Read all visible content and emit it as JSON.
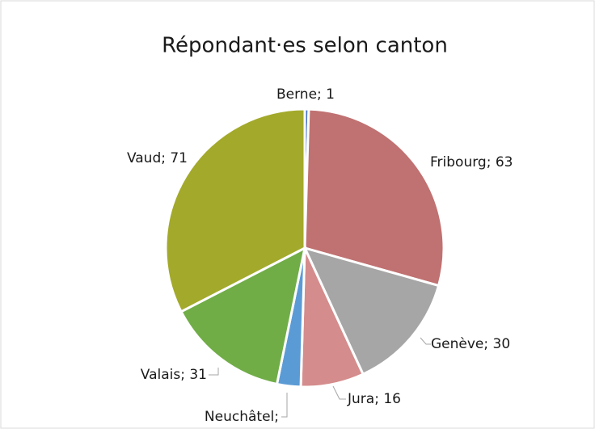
{
  "chart_data": {
    "type": "pie",
    "title": "Répondant·es selon canton",
    "categories": [
      "Berne",
      "Fribourg",
      "Genève",
      "Jura",
      "Neuchâtel",
      "Valais",
      "Vaud"
    ],
    "values": [
      1,
      63,
      30,
      16,
      6,
      31,
      71
    ],
    "value_labels": [
      "Berne; 1",
      "Fribourg; 63",
      "Genève; 30",
      "Jura; 16",
      "Neuchâtel;",
      "Valais; 31",
      "Vaud; 71"
    ],
    "colors": [
      "#4472c4",
      "#c07171",
      "#a6a6a6",
      "#d48c8c",
      "#5b9bd5",
      "#70ad47",
      "#a3a92a"
    ]
  }
}
